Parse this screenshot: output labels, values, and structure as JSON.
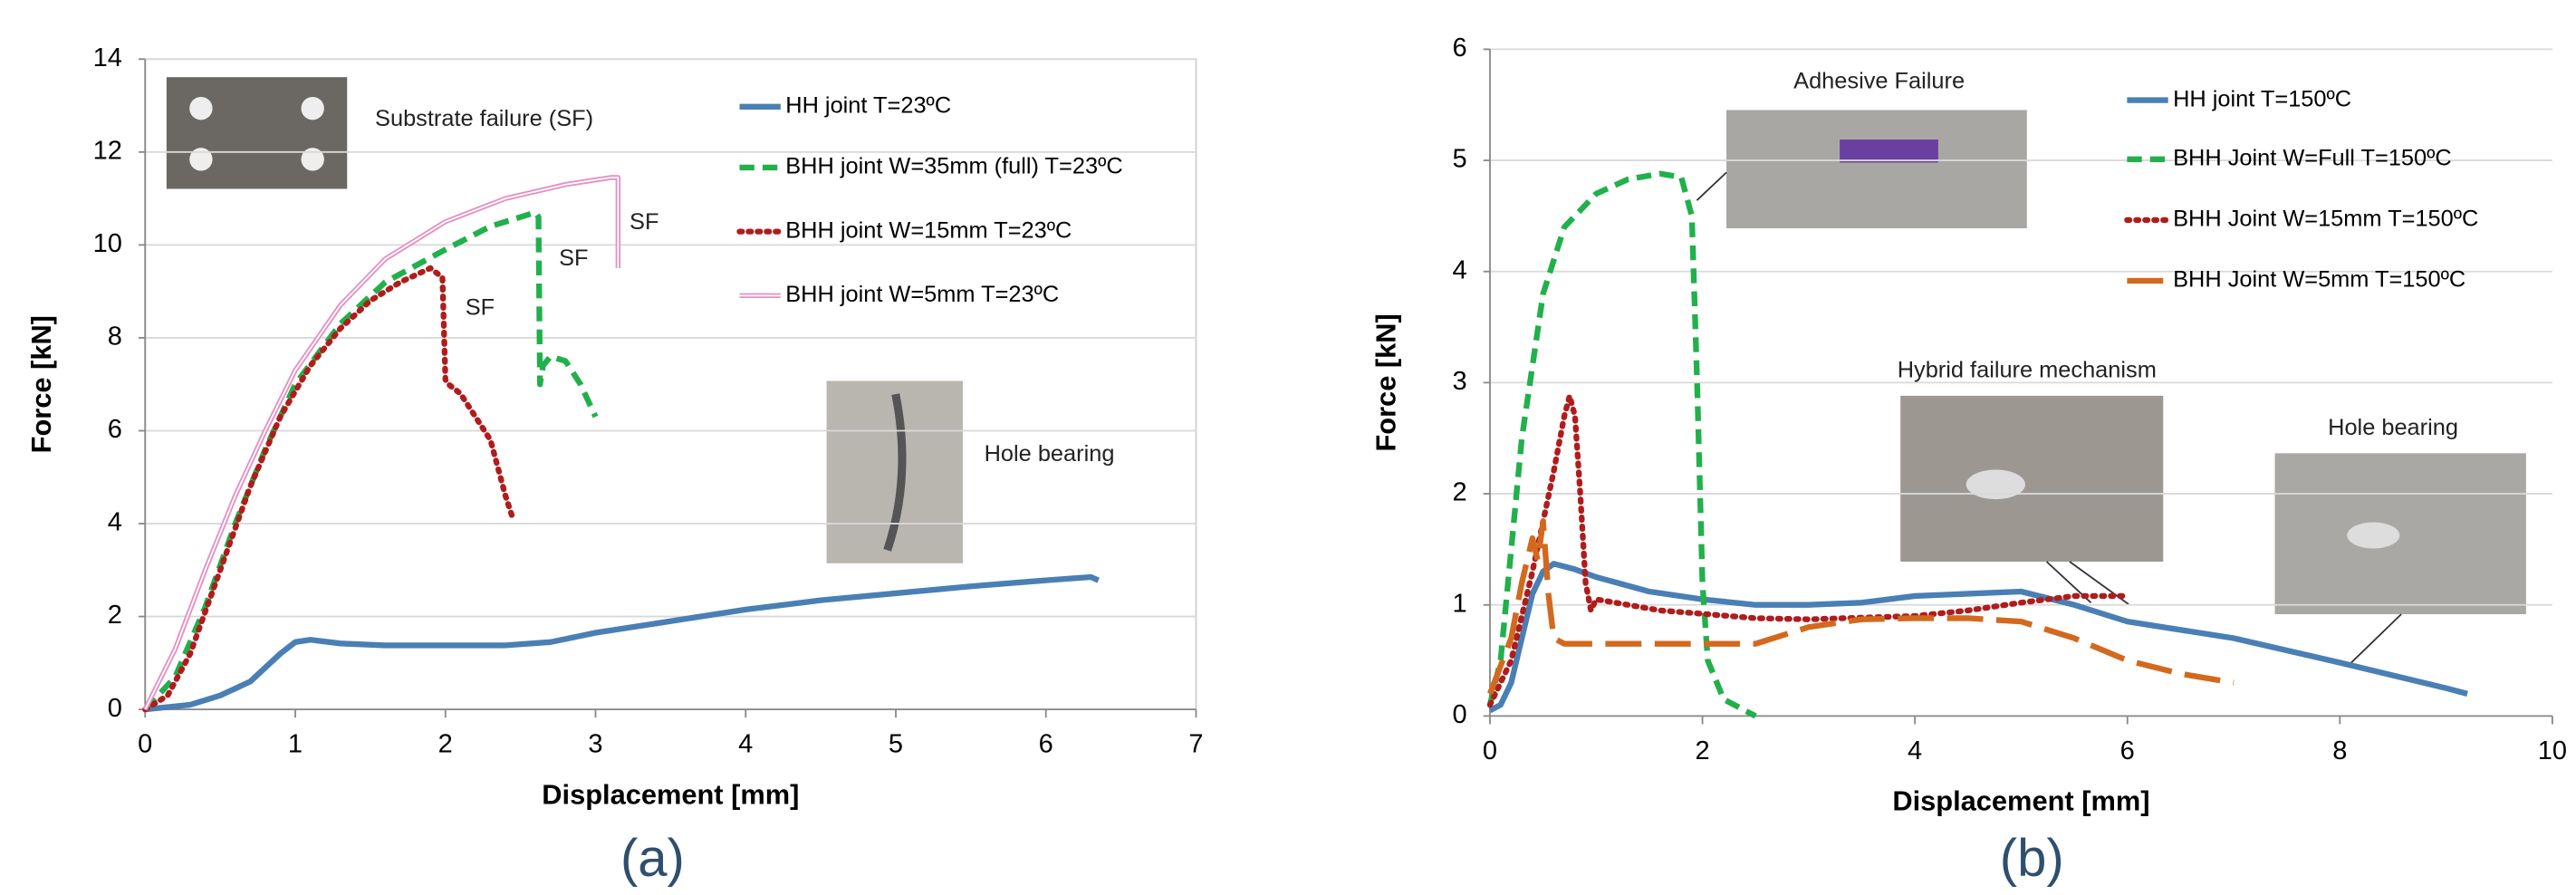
{
  "chart_data": [
    {
      "type": "line",
      "panel_label": "(a)",
      "x_label": "Displacement [mm]",
      "y_label": "Force [kN]",
      "xlim": [
        0,
        7
      ],
      "xticks": [
        0,
        1,
        2,
        3,
        4,
        5,
        6,
        7
      ],
      "ylim": [
        0,
        14
      ],
      "yticks": [
        0,
        2,
        4,
        6,
        8,
        10,
        12,
        14
      ],
      "grid": true,
      "frame": true,
      "series": [
        {
          "name": "HH joint  T=23ºC",
          "color": "#4a7fb5",
          "style": "solid",
          "x": [
            0,
            0.3,
            0.5,
            0.7,
            0.8,
            0.9,
            1.0,
            1.1,
            1.3,
            1.6,
            2.0,
            2.4,
            2.7,
            3.0,
            3.5,
            4.0,
            4.5,
            5.0,
            5.5,
            6.0,
            6.3,
            6.35
          ],
          "values": [
            0,
            0.1,
            0.3,
            0.6,
            0.9,
            1.2,
            1.45,
            1.5,
            1.42,
            1.38,
            1.38,
            1.38,
            1.45,
            1.65,
            1.9,
            2.15,
            2.35,
            2.5,
            2.65,
            2.78,
            2.85,
            2.78
          ]
        },
        {
          "name": "BHH joint W=35mm (full)  T=23ºC",
          "color": "#21b04b",
          "style": "dashed",
          "x": [
            0,
            0.2,
            0.4,
            0.6,
            0.8,
            1.0,
            1.3,
            1.6,
            2.0,
            2.3,
            2.6,
            2.62,
            2.63,
            2.65,
            2.7,
            2.8,
            2.9,
            3.0
          ],
          "values": [
            0,
            0.7,
            2.2,
            4.0,
            5.6,
            7.0,
            8.3,
            9.2,
            9.9,
            10.4,
            10.7,
            10.6,
            7.0,
            7.4,
            7.6,
            7.5,
            7.0,
            6.3
          ]
        },
        {
          "name": "BHH joint W=15mm  T=23ºC",
          "color": "#b01c1c",
          "style": "dotted",
          "x": [
            0,
            0.15,
            0.3,
            0.5,
            0.7,
            0.9,
            1.1,
            1.3,
            1.5,
            1.7,
            1.9,
            1.98,
            2.0,
            2.02,
            2.1,
            2.2,
            2.3,
            2.35,
            2.4,
            2.45
          ],
          "values": [
            0,
            0.3,
            1.2,
            3.0,
            4.8,
            6.3,
            7.4,
            8.2,
            8.8,
            9.2,
            9.5,
            9.3,
            7.1,
            7.0,
            6.8,
            6.3,
            5.8,
            5.2,
            4.6,
            4.1
          ]
        },
        {
          "name": "BHH joint W=5mm  T=23ºC",
          "color": "#e68fc0",
          "style": "double",
          "x": [
            0,
            0.2,
            0.4,
            0.6,
            0.8,
            1.0,
            1.3,
            1.6,
            2.0,
            2.4,
            2.8,
            3.1,
            3.15,
            3.15
          ],
          "values": [
            0,
            1.3,
            3.0,
            4.6,
            6.0,
            7.3,
            8.7,
            9.7,
            10.5,
            11.0,
            11.3,
            11.45,
            11.45,
            9.5
          ]
        }
      ],
      "annotations": [
        "Substrate failure (SF)",
        "SF",
        "SF",
        "SF",
        "Hole bearing"
      ]
    },
    {
      "type": "line",
      "panel_label": "(b)",
      "x_label": "Displacement [mm]",
      "y_label": "Force [kN]",
      "xlim": [
        0,
        10
      ],
      "xticks": [
        0,
        2,
        4,
        6,
        8,
        10
      ],
      "ylim": [
        0,
        6
      ],
      "yticks": [
        0,
        1,
        2,
        3,
        4,
        5,
        6
      ],
      "grid": true,
      "frame": false,
      "series": [
        {
          "name": "HH joint T=150ºC",
          "color": "#4a7fb5",
          "style": "solid",
          "x": [
            0,
            0.1,
            0.2,
            0.3,
            0.4,
            0.5,
            0.6,
            0.8,
            1.0,
            1.5,
            2.0,
            2.5,
            3.0,
            3.5,
            4.0,
            4.5,
            5.0,
            5.5,
            6.0,
            7.0,
            8.0,
            9.0,
            9.2
          ],
          "values": [
            0.05,
            0.1,
            0.3,
            0.7,
            1.1,
            1.3,
            1.37,
            1.32,
            1.25,
            1.12,
            1.05,
            1.0,
            1.0,
            1.02,
            1.08,
            1.1,
            1.12,
            1.0,
            0.85,
            0.7,
            0.48,
            0.25,
            0.2
          ]
        },
        {
          "name": "BHH Joint W=Full T=150ºC",
          "color": "#21b04b",
          "style": "dashed",
          "x": [
            0,
            0.1,
            0.2,
            0.3,
            0.5,
            0.7,
            1.0,
            1.3,
            1.6,
            1.8,
            1.9,
            1.95,
            2.0,
            2.05,
            2.2,
            2.5
          ],
          "values": [
            0.1,
            0.5,
            1.5,
            2.5,
            3.8,
            4.4,
            4.7,
            4.83,
            4.88,
            4.85,
            4.5,
            3.0,
            1.2,
            0.5,
            0.15,
            0
          ]
        },
        {
          "name": "BHH Joint W=15mm T=150ºC",
          "color": "#b01c1c",
          "style": "dotted",
          "x": [
            0,
            0.2,
            0.4,
            0.6,
            0.7,
            0.75,
            0.8,
            0.85,
            0.9,
            0.95,
            1.0,
            1.3,
            1.6,
            2.0,
            2.5,
            3.0,
            4.0,
            4.5,
            5.0,
            5.5,
            6.0
          ],
          "values": [
            0.1,
            0.5,
            1.3,
            2.2,
            2.7,
            2.88,
            2.7,
            2.0,
            1.2,
            0.95,
            1.05,
            1.0,
            0.95,
            0.92,
            0.88,
            0.87,
            0.9,
            0.95,
            1.02,
            1.08,
            1.08
          ]
        },
        {
          "name": "BHH Joint W=5mm T=150ºC",
          "color": "#d2691e",
          "style": "long-dash",
          "x": [
            0,
            0.2,
            0.3,
            0.4,
            0.45,
            0.5,
            0.55,
            0.6,
            0.7,
            1.0,
            1.5,
            2.0,
            2.5,
            3.0,
            3.5,
            4.0,
            4.5,
            5.0,
            5.5,
            6.0,
            6.5,
            7.0
          ],
          "values": [
            0.2,
            0.7,
            1.2,
            1.6,
            1.4,
            1.75,
            1.1,
            0.7,
            0.65,
            0.65,
            0.65,
            0.65,
            0.65,
            0.8,
            0.87,
            0.88,
            0.88,
            0.85,
            0.7,
            0.5,
            0.38,
            0.3
          ]
        }
      ],
      "annotations": [
        "Adhesive Failure",
        "Hybrid failure mechanism",
        "Hole bearing"
      ]
    }
  ]
}
